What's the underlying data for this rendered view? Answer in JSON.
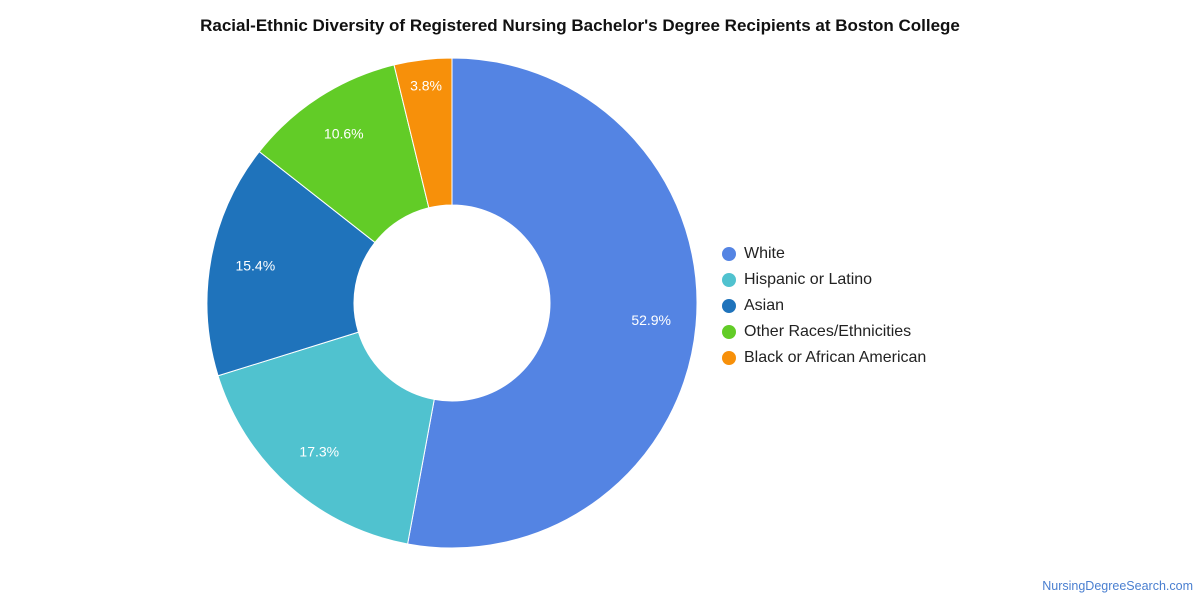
{
  "title": "Racial-Ethnic Diversity of Registered Nursing Bachelor's Degree Recipients at Boston College",
  "source": "NursingDegreeSearch.com",
  "chart_data": {
    "type": "pie",
    "donut": true,
    "title": "Racial-Ethnic Diversity of Registered Nursing Bachelor's Degree Recipients at Boston College",
    "legend_position": "right",
    "slices": [
      {
        "name": "White",
        "value": 52.9,
        "label": "52.9%",
        "color": "#5484e3"
      },
      {
        "name": "Hispanic or Latino",
        "value": 17.3,
        "label": "17.3%",
        "color": "#50c2cf"
      },
      {
        "name": "Asian",
        "value": 15.4,
        "label": "15.4%",
        "color": "#1f73bb"
      },
      {
        "name": "Other Races/Ethnicities",
        "value": 10.6,
        "label": "10.6%",
        "color": "#62cc27"
      },
      {
        "name": "Black or African American",
        "value": 3.8,
        "label": "3.8%",
        "color": "#f7900a"
      }
    ]
  }
}
